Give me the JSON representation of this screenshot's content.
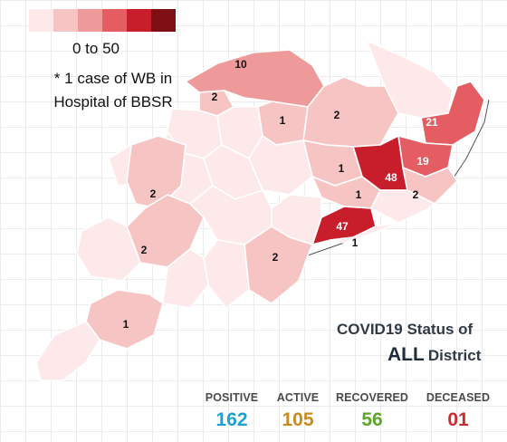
{
  "legend": {
    "colors": [
      "#fde9e9",
      "#f7c4c4",
      "#ef9a9a",
      "#e35d63",
      "#c81e2b",
      "#7e1015"
    ],
    "range_label": "0 to 50",
    "note": "* 1 case of WB in Hospital of BBSR"
  },
  "title": {
    "line1": "COVID19 Status of",
    "line2_emphasis": "ALL",
    "line2_rest": "District"
  },
  "stats": {
    "positive": {
      "label": "POSITIVE",
      "value": "162",
      "color": "#1ea0d8"
    },
    "active": {
      "label": "ACTIVE",
      "value": "105",
      "color": "#c98a1e"
    },
    "recovered": {
      "label": "RECOVERED",
      "value": "56",
      "color": "#5aa626"
    },
    "deceased": {
      "label": "DECEASED",
      "value": "01",
      "color": "#cc2a30"
    }
  },
  "district_counts": [
    {
      "id": "sundargarh",
      "count": 10
    },
    {
      "id": "jharsuguda",
      "count": 2
    },
    {
      "id": "deogarh",
      "count": 1
    },
    {
      "id": "keonjhar",
      "count": 2
    },
    {
      "id": "balasore",
      "count": 21
    },
    {
      "id": "bhadrak",
      "count": 19
    },
    {
      "id": "jajpur",
      "count": 48
    },
    {
      "id": "dhenkanal",
      "count": 1
    },
    {
      "id": "cuttack",
      "count": 1
    },
    {
      "id": "kendrapara",
      "count": 2
    },
    {
      "id": "khurda",
      "count": 47
    },
    {
      "id": "puri",
      "count": 1
    },
    {
      "id": "kalahandi",
      "count": 2
    },
    {
      "id": "nabarangpur",
      "count": 2
    },
    {
      "id": "ganjam",
      "count": 2
    },
    {
      "id": "koraput",
      "count": 1
    }
  ]
}
